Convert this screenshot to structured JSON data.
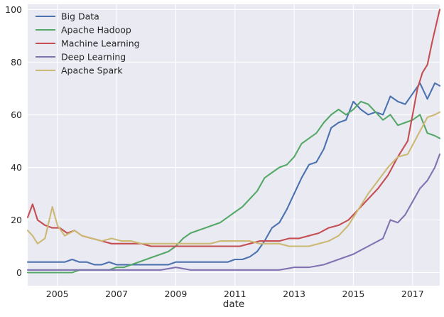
{
  "chart_data": {
    "type": "line",
    "xlabel": "date",
    "ylabel": "",
    "x_start": "2004-01",
    "x_end": "2017-12",
    "xlim": [
      "2004-01",
      "2017-12"
    ],
    "ylim": [
      -5,
      102
    ],
    "x_ticks": [
      {
        "label": "2005",
        "date": "2005-01"
      },
      {
        "label": "2007",
        "date": "2007-01"
      },
      {
        "label": "2009",
        "date": "2009-01"
      },
      {
        "label": "2011",
        "date": "2011-01"
      },
      {
        "label": "2013",
        "date": "2013-01"
      },
      {
        "label": "2015",
        "date": "2015-01"
      },
      {
        "label": "2017",
        "date": "2017-01"
      }
    ],
    "y_ticks": [
      "0",
      "20",
      "40",
      "60",
      "80",
      "100"
    ],
    "grid": true,
    "legend_position": "top-left",
    "background": "#eaeaf2",
    "series": [
      {
        "name": "Big Data",
        "color": "#4c72b0",
        "points": [
          [
            "2004-01",
            4
          ],
          [
            "2004-04",
            4
          ],
          [
            "2004-07",
            4
          ],
          [
            "2004-10",
            4
          ],
          [
            "2005-01",
            4
          ],
          [
            "2005-04",
            4
          ],
          [
            "2005-07",
            5
          ],
          [
            "2005-10",
            4
          ],
          [
            "2006-01",
            4
          ],
          [
            "2006-04",
            3
          ],
          [
            "2006-07",
            3
          ],
          [
            "2006-10",
            4
          ],
          [
            "2007-01",
            3
          ],
          [
            "2007-04",
            3
          ],
          [
            "2007-07",
            3
          ],
          [
            "2007-10",
            3
          ],
          [
            "2008-01",
            3
          ],
          [
            "2008-04",
            3
          ],
          [
            "2008-07",
            3
          ],
          [
            "2008-10",
            3
          ],
          [
            "2009-01",
            4
          ],
          [
            "2009-04",
            4
          ],
          [
            "2009-07",
            4
          ],
          [
            "2009-10",
            4
          ],
          [
            "2010-01",
            4
          ],
          [
            "2010-04",
            4
          ],
          [
            "2010-07",
            4
          ],
          [
            "2010-10",
            4
          ],
          [
            "2011-01",
            5
          ],
          [
            "2011-04",
            5
          ],
          [
            "2011-07",
            6
          ],
          [
            "2011-10",
            8
          ],
          [
            "2012-01",
            12
          ],
          [
            "2012-04",
            17
          ],
          [
            "2012-07",
            19
          ],
          [
            "2012-10",
            24
          ],
          [
            "2013-01",
            30
          ],
          [
            "2013-04",
            36
          ],
          [
            "2013-07",
            41
          ],
          [
            "2013-10",
            42
          ],
          [
            "2014-01",
            47
          ],
          [
            "2014-04",
            55
          ],
          [
            "2014-07",
            57
          ],
          [
            "2014-10",
            58
          ],
          [
            "2015-01",
            65
          ],
          [
            "2015-04",
            62
          ],
          [
            "2015-07",
            60
          ],
          [
            "2015-10",
            61
          ],
          [
            "2016-01",
            60
          ],
          [
            "2016-04",
            67
          ],
          [
            "2016-07",
            65
          ],
          [
            "2016-10",
            64
          ],
          [
            "2017-01",
            68
          ],
          [
            "2017-04",
            72
          ],
          [
            "2017-07",
            66
          ],
          [
            "2017-10",
            72
          ],
          [
            "2017-12",
            71
          ]
        ]
      },
      {
        "name": "Apache Hadoop",
        "color": "#55a868",
        "points": [
          [
            "2004-01",
            0
          ],
          [
            "2004-04",
            0
          ],
          [
            "2004-07",
            0
          ],
          [
            "2004-10",
            0
          ],
          [
            "2005-01",
            0
          ],
          [
            "2005-04",
            0
          ],
          [
            "2005-07",
            0
          ],
          [
            "2005-10",
            1
          ],
          [
            "2006-01",
            1
          ],
          [
            "2006-04",
            1
          ],
          [
            "2006-07",
            1
          ],
          [
            "2006-10",
            1
          ],
          [
            "2007-01",
            2
          ],
          [
            "2007-04",
            2
          ],
          [
            "2007-07",
            3
          ],
          [
            "2007-10",
            4
          ],
          [
            "2008-01",
            5
          ],
          [
            "2008-04",
            6
          ],
          [
            "2008-07",
            7
          ],
          [
            "2008-10",
            8
          ],
          [
            "2009-01",
            10
          ],
          [
            "2009-04",
            13
          ],
          [
            "2009-07",
            15
          ],
          [
            "2009-10",
            16
          ],
          [
            "2010-01",
            17
          ],
          [
            "2010-04",
            18
          ],
          [
            "2010-07",
            19
          ],
          [
            "2010-10",
            21
          ],
          [
            "2011-01",
            23
          ],
          [
            "2011-04",
            25
          ],
          [
            "2011-07",
            28
          ],
          [
            "2011-10",
            31
          ],
          [
            "2012-01",
            36
          ],
          [
            "2012-04",
            38
          ],
          [
            "2012-07",
            40
          ],
          [
            "2012-10",
            41
          ],
          [
            "2013-01",
            44
          ],
          [
            "2013-04",
            49
          ],
          [
            "2013-07",
            51
          ],
          [
            "2013-10",
            53
          ],
          [
            "2014-01",
            57
          ],
          [
            "2014-04",
            60
          ],
          [
            "2014-07",
            62
          ],
          [
            "2014-10",
            60
          ],
          [
            "2015-01",
            62
          ],
          [
            "2015-04",
            65
          ],
          [
            "2015-07",
            64
          ],
          [
            "2015-10",
            61
          ],
          [
            "2016-01",
            58
          ],
          [
            "2016-04",
            60
          ],
          [
            "2016-07",
            56
          ],
          [
            "2016-10",
            57
          ],
          [
            "2017-01",
            58
          ],
          [
            "2017-04",
            60
          ],
          [
            "2017-07",
            53
          ],
          [
            "2017-10",
            52
          ],
          [
            "2017-12",
            51
          ]
        ]
      },
      {
        "name": "Machine Learning",
        "color": "#c44e52",
        "points": [
          [
            "2004-01",
            21
          ],
          [
            "2004-03",
            26
          ],
          [
            "2004-05",
            20
          ],
          [
            "2004-08",
            18
          ],
          [
            "2004-11",
            17
          ],
          [
            "2005-02",
            17
          ],
          [
            "2005-05",
            15
          ],
          [
            "2005-08",
            16
          ],
          [
            "2005-11",
            14
          ],
          [
            "2006-03",
            13
          ],
          [
            "2006-07",
            12
          ],
          [
            "2006-11",
            11
          ],
          [
            "2007-03",
            11
          ],
          [
            "2007-07",
            11
          ],
          [
            "2007-11",
            11
          ],
          [
            "2008-03",
            10
          ],
          [
            "2008-07",
            10
          ],
          [
            "2008-11",
            10
          ],
          [
            "2009-03",
            10
          ],
          [
            "2009-07",
            10
          ],
          [
            "2009-11",
            10
          ],
          [
            "2010-03",
            10
          ],
          [
            "2010-07",
            10
          ],
          [
            "2010-11",
            10
          ],
          [
            "2011-03",
            10
          ],
          [
            "2011-07",
            11
          ],
          [
            "2011-11",
            12
          ],
          [
            "2012-03",
            12
          ],
          [
            "2012-07",
            12
          ],
          [
            "2012-11",
            13
          ],
          [
            "2013-03",
            13
          ],
          [
            "2013-07",
            14
          ],
          [
            "2013-11",
            15
          ],
          [
            "2014-03",
            17
          ],
          [
            "2014-07",
            18
          ],
          [
            "2014-11",
            20
          ],
          [
            "2015-03",
            24
          ],
          [
            "2015-07",
            28
          ],
          [
            "2015-11",
            32
          ],
          [
            "2016-03",
            37
          ],
          [
            "2016-07",
            44
          ],
          [
            "2016-11",
            50
          ],
          [
            "2017-01",
            60
          ],
          [
            "2017-03",
            70
          ],
          [
            "2017-05",
            76
          ],
          [
            "2017-07",
            79
          ],
          [
            "2017-09",
            88
          ],
          [
            "2017-11",
            96
          ],
          [
            "2017-12",
            100
          ]
        ]
      },
      {
        "name": "Deep Learning",
        "color": "#8172b2",
        "points": [
          [
            "2004-01",
            1
          ],
          [
            "2005-01",
            1
          ],
          [
            "2006-01",
            1
          ],
          [
            "2007-01",
            1
          ],
          [
            "2008-01",
            1
          ],
          [
            "2008-07",
            1
          ],
          [
            "2009-01",
            2
          ],
          [
            "2009-07",
            1
          ],
          [
            "2010-01",
            1
          ],
          [
            "2011-01",
            1
          ],
          [
            "2012-01",
            1
          ],
          [
            "2012-07",
            1
          ],
          [
            "2013-01",
            2
          ],
          [
            "2013-07",
            2
          ],
          [
            "2014-01",
            3
          ],
          [
            "2014-07",
            5
          ],
          [
            "2015-01",
            7
          ],
          [
            "2015-07",
            10
          ],
          [
            "2016-01",
            13
          ],
          [
            "2016-04",
            20
          ],
          [
            "2016-07",
            19
          ],
          [
            "2016-10",
            22
          ],
          [
            "2017-01",
            27
          ],
          [
            "2017-04",
            32
          ],
          [
            "2017-07",
            35
          ],
          [
            "2017-10",
            40
          ],
          [
            "2017-12",
            45
          ]
        ]
      },
      {
        "name": "Apache Spark",
        "color": "#ccb974",
        "points": [
          [
            "2004-01",
            16
          ],
          [
            "2004-03",
            14
          ],
          [
            "2004-05",
            11
          ],
          [
            "2004-08",
            13
          ],
          [
            "2004-11",
            25
          ],
          [
            "2005-01",
            18
          ],
          [
            "2005-04",
            14
          ],
          [
            "2005-08",
            16
          ],
          [
            "2005-11",
            14
          ],
          [
            "2006-03",
            13
          ],
          [
            "2006-07",
            12
          ],
          [
            "2006-11",
            13
          ],
          [
            "2007-03",
            12
          ],
          [
            "2007-07",
            12
          ],
          [
            "2007-11",
            11
          ],
          [
            "2008-03",
            11
          ],
          [
            "2008-07",
            11
          ],
          [
            "2008-11",
            11
          ],
          [
            "2009-03",
            11
          ],
          [
            "2009-07",
            11
          ],
          [
            "2009-11",
            11
          ],
          [
            "2010-03",
            11
          ],
          [
            "2010-07",
            12
          ],
          [
            "2010-11",
            12
          ],
          [
            "2011-03",
            12
          ],
          [
            "2011-07",
            12
          ],
          [
            "2011-11",
            11
          ],
          [
            "2012-03",
            11
          ],
          [
            "2012-07",
            11
          ],
          [
            "2012-11",
            10
          ],
          [
            "2013-03",
            10
          ],
          [
            "2013-07",
            10
          ],
          [
            "2013-11",
            11
          ],
          [
            "2014-03",
            12
          ],
          [
            "2014-07",
            14
          ],
          [
            "2014-11",
            18
          ],
          [
            "2015-03",
            24
          ],
          [
            "2015-07",
            30
          ],
          [
            "2015-11",
            35
          ],
          [
            "2016-03",
            40
          ],
          [
            "2016-07",
            44
          ],
          [
            "2016-11",
            45
          ],
          [
            "2017-03",
            52
          ],
          [
            "2017-07",
            59
          ],
          [
            "2017-10",
            60
          ],
          [
            "2017-12",
            61
          ]
        ]
      }
    ]
  }
}
